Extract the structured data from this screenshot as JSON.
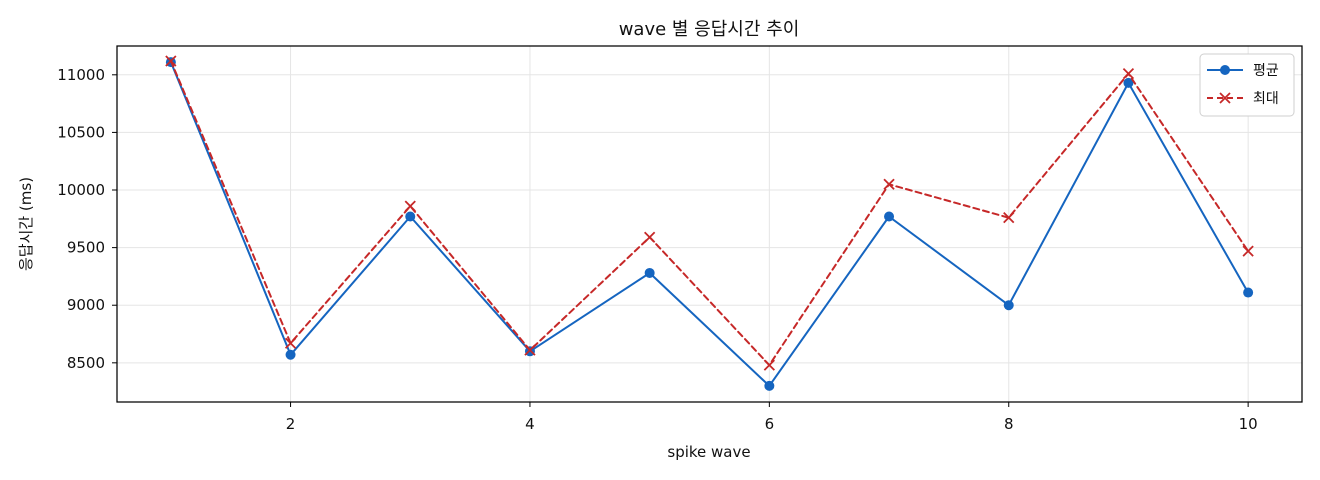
{
  "chart_data": {
    "type": "line",
    "title": "wave 별 응답시간 추이",
    "xlabel": "spike wave",
    "ylabel": "응답시간 (ms)",
    "x": [
      1,
      2,
      3,
      4,
      5,
      6,
      7,
      8,
      9,
      10
    ],
    "xticks": [
      2,
      4,
      6,
      8,
      10
    ],
    "yticks": [
      8500,
      9000,
      9500,
      10000,
      10500,
      11000
    ],
    "xlim": [
      0.55,
      10.45
    ],
    "ylim": [
      8160,
      11250
    ],
    "grid": true,
    "legend_position": "top-right",
    "series": [
      {
        "name": "평균",
        "values": [
          11110,
          8570,
          9770,
          8600,
          9280,
          8300,
          9770,
          9000,
          10930,
          9110
        ],
        "color": "#1565c0",
        "marker": "circle",
        "line_style": "solid"
      },
      {
        "name": "최대",
        "values": [
          11120,
          8670,
          9860,
          8610,
          9590,
          8480,
          10050,
          9760,
          11010,
          9470
        ],
        "color": "#c62828",
        "marker": "x",
        "line_style": "dashed"
      }
    ]
  }
}
